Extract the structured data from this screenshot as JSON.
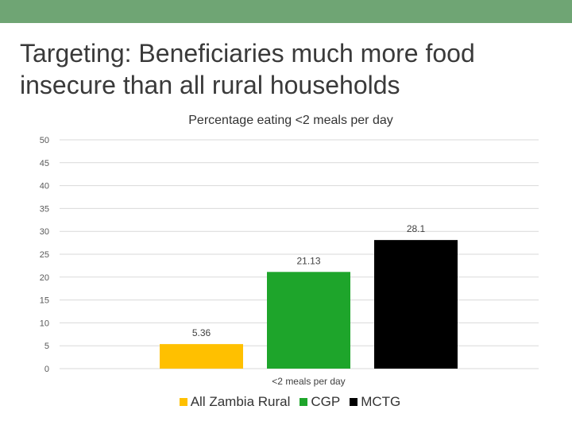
{
  "slide": {
    "title": "Targeting: Beneficiaries much more food insecure than all rural households",
    "accent_color": "#6fa574"
  },
  "chart_data": {
    "type": "bar",
    "title": "Percentage eating <2 meals per day",
    "categories": [
      "<2 meals per day"
    ],
    "series": [
      {
        "name": "All Zambia Rural",
        "values": [
          5.36
        ],
        "label": "5.36",
        "color": "#ffc000"
      },
      {
        "name": "CGP",
        "values": [
          21.13
        ],
        "label": "21.13",
        "color": "#1ea52b"
      },
      {
        "name": "MCTG",
        "values": [
          28.1
        ],
        "label": "28.1",
        "color": "#000000"
      }
    ],
    "ylim": [
      0,
      50
    ],
    "yticks": [
      0,
      5,
      10,
      15,
      20,
      25,
      30,
      35,
      40,
      45,
      50
    ],
    "grid": true,
    "legend": "bottom"
  }
}
